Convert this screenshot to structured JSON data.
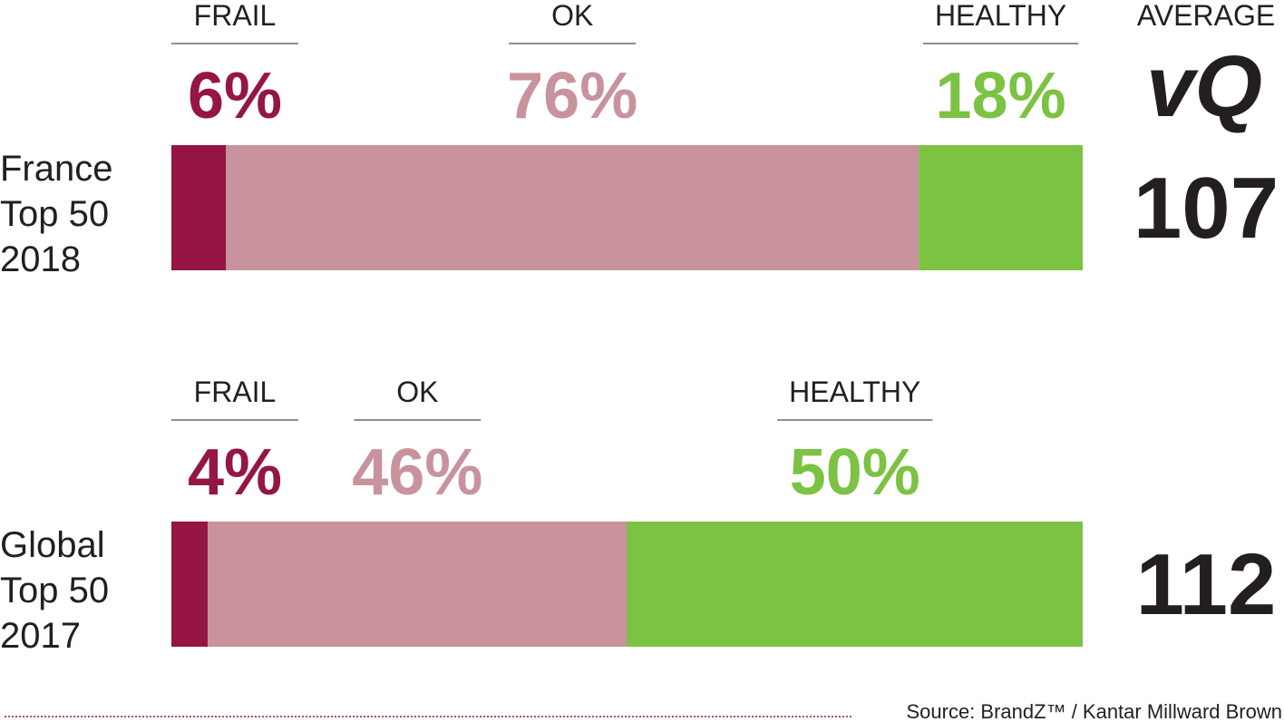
{
  "average_header": "AVERAGE",
  "logo": "vQ",
  "source": "Source: BrandZ™ / Kantar Millward Brown",
  "chart_data": [
    {
      "type": "bar",
      "label_lines": [
        "France",
        "Top 50",
        "2018"
      ],
      "average_vq": 107,
      "series": [
        {
          "name": "FRAIL",
          "color": "#951545",
          "values": [
            6
          ],
          "value_labels": [
            "6%"
          ]
        },
        {
          "name": "OK",
          "color": "#c8939c",
          "values": [
            76
          ],
          "value_labels": [
            "76%"
          ]
        },
        {
          "name": "HEALTHY",
          "color": "#7cc243",
          "values": [
            18
          ],
          "value_labels": [
            "18%"
          ]
        }
      ]
    },
    {
      "type": "bar",
      "label_lines": [
        "Global",
        "Top 50",
        "2017"
      ],
      "average_vq": 112,
      "series": [
        {
          "name": "FRAIL",
          "color": "#951545",
          "values": [
            4
          ],
          "value_labels": [
            "4%"
          ]
        },
        {
          "name": "OK",
          "color": "#c8939c",
          "values": [
            46
          ],
          "value_labels": [
            "46%"
          ]
        },
        {
          "name": "HEALTHY",
          "color": "#7cc243",
          "values": [
            50
          ],
          "value_labels": [
            "50%"
          ]
        }
      ]
    }
  ]
}
